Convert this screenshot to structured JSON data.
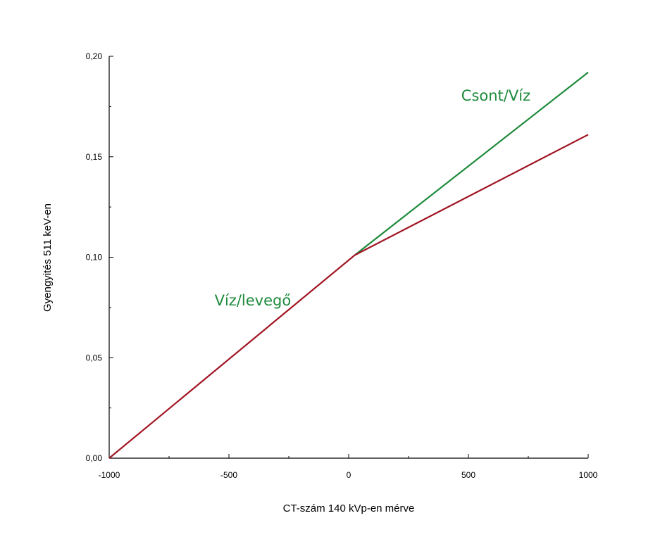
{
  "chart_data": {
    "type": "line",
    "title": "",
    "xlabel": "CT-szám 140 kVp-en mérve",
    "ylabel": "Gyengyités 511 keV-en",
    "xlim": [
      -1000,
      1000
    ],
    "ylim": [
      0,
      0.2
    ],
    "grid": false,
    "x_ticks": [
      -1000,
      -500,
      0,
      500,
      1000
    ],
    "x_tick_labels": [
      "-1000",
      "-500",
      "0",
      "500",
      "1000"
    ],
    "y_ticks": [
      0,
      0.05,
      0.1,
      0.15,
      0.2
    ],
    "y_tick_labels": [
      "0,00",
      "0,05",
      "0,10",
      "0,15",
      "0,20"
    ],
    "series": [
      {
        "name": "",
        "color": "#1e8a3c",
        "x": [
          25,
          1000
        ],
        "y": [
          0.101,
          0.192
        ]
      },
      {
        "name": "",
        "color": "#a01422",
        "x": [
          -1000,
          25,
          1000
        ],
        "y": [
          0,
          0.101,
          0.161
        ]
      }
    ],
    "annotations": [
      {
        "text": "Csont/Víz",
        "color": "#1e8a3c",
        "x": 470,
        "y": 0.178
      },
      {
        "text": "Víz/levegő",
        "color": "#1e8a3c",
        "x": -560,
        "y": 0.076
      }
    ]
  }
}
